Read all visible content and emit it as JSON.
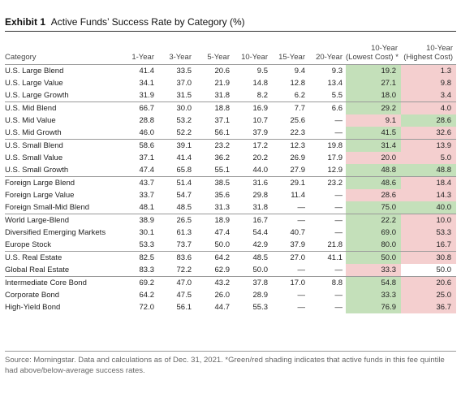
{
  "exhibit": {
    "label": "Exhibit 1",
    "title": "Active Funds’ Success Rate by Category (%)"
  },
  "columns": [
    "Category",
    "1-Year",
    "3-Year",
    "5-Year",
    "10-Year",
    "15-Year",
    "20-Year",
    "10-Year (Lowest Cost) *",
    "10-Year (Highest Cost)"
  ],
  "column_lines": [
    [
      "Category"
    ],
    [
      "1-Year"
    ],
    [
      "3-Year"
    ],
    [
      "5-Year"
    ],
    [
      "10-Year"
    ],
    [
      "15-Year"
    ],
    [
      "20-Year"
    ],
    [
      "10-Year",
      "(Lowest Cost) *"
    ],
    [
      "10-Year",
      "(Highest Cost)"
    ]
  ],
  "rows": [
    {
      "category": "U.S. Large Blend",
      "values": [
        "41.4",
        "33.5",
        "20.6",
        "9.5",
        "9.4",
        "9.3",
        "19.2",
        "1.3"
      ],
      "low_shade": "green",
      "high_shade": "red",
      "group_start": true
    },
    {
      "category": "U.S. Large Value",
      "values": [
        "34.1",
        "37.0",
        "21.9",
        "14.8",
        "12.8",
        "13.4",
        "27.1",
        "9.8"
      ],
      "low_shade": "green",
      "high_shade": "red",
      "group_start": false
    },
    {
      "category": "U.S. Large Growth",
      "values": [
        "31.9",
        "31.5",
        "31.8",
        "8.2",
        "6.2",
        "5.5",
        "18.0",
        "3.4"
      ],
      "low_shade": "green",
      "high_shade": "red",
      "group_start": false
    },
    {
      "category": "U.S. Mid Blend",
      "values": [
        "66.7",
        "30.0",
        "18.8",
        "16.9",
        "7.7",
        "6.6",
        "29.2",
        "4.0"
      ],
      "low_shade": "green",
      "high_shade": "red",
      "group_start": true
    },
    {
      "category": "U.S. Mid Value",
      "values": [
        "28.8",
        "53.2",
        "37.1",
        "10.7",
        "25.6",
        "—",
        "9.1",
        "28.6"
      ],
      "low_shade": "red",
      "high_shade": "green",
      "group_start": false
    },
    {
      "category": "U.S. Mid Growth",
      "values": [
        "46.0",
        "52.2",
        "56.1",
        "37.9",
        "22.3",
        "—",
        "41.5",
        "32.6"
      ],
      "low_shade": "green",
      "high_shade": "red",
      "group_start": false
    },
    {
      "category": "U.S. Small Blend",
      "values": [
        "58.6",
        "39.1",
        "23.2",
        "17.2",
        "12.3",
        "19.8",
        "31.4",
        "13.9"
      ],
      "low_shade": "green",
      "high_shade": "red",
      "group_start": true
    },
    {
      "category": "U.S. Small Value",
      "values": [
        "37.1",
        "41.4",
        "36.2",
        "20.2",
        "26.9",
        "17.9",
        "20.0",
        "5.0"
      ],
      "low_shade": "red",
      "high_shade": "red",
      "group_start": false
    },
    {
      "category": "U.S. Small Growth",
      "values": [
        "47.4",
        "65.8",
        "55.1",
        "44.0",
        "27.9",
        "12.9",
        "48.8",
        "48.8"
      ],
      "low_shade": "green",
      "high_shade": "green",
      "group_start": false
    },
    {
      "category": "Foreign Large Blend",
      "values": [
        "43.7",
        "51.4",
        "38.5",
        "31.6",
        "29.1",
        "23.2",
        "48.6",
        "18.4"
      ],
      "low_shade": "green",
      "high_shade": "red",
      "group_start": true
    },
    {
      "category": "Foreign Large Value",
      "values": [
        "33.7",
        "54.7",
        "35.6",
        "29.8",
        "11.4",
        "—",
        "28.6",
        "14.3"
      ],
      "low_shade": "red",
      "high_shade": "red",
      "group_start": false
    },
    {
      "category": "Foreign Small-Mid Blend",
      "values": [
        "48.1",
        "48.5",
        "31.3",
        "31.8",
        "—",
        "—",
        "75.0",
        "40.0"
      ],
      "low_shade": "green",
      "high_shade": "green",
      "group_start": false
    },
    {
      "category": "World Large-Blend",
      "values": [
        "38.9",
        "26.5",
        "18.9",
        "16.7",
        "—",
        "—",
        "22.2",
        "10.0"
      ],
      "low_shade": "green",
      "high_shade": "red",
      "group_start": true
    },
    {
      "category": "Diversified Emerging Markets",
      "values": [
        "30.1",
        "61.3",
        "47.4",
        "54.4",
        "40.7",
        "—",
        "69.0",
        "53.3"
      ],
      "low_shade": "green",
      "high_shade": "red",
      "group_start": false
    },
    {
      "category": "Europe Stock",
      "values": [
        "53.3",
        "73.7",
        "50.0",
        "42.9",
        "37.9",
        "21.8",
        "80.0",
        "16.7"
      ],
      "low_shade": "green",
      "high_shade": "red",
      "group_start": false
    },
    {
      "category": "U.S. Real Estate",
      "values": [
        "82.5",
        "83.6",
        "64.2",
        "48.5",
        "27.0",
        "41.1",
        "50.0",
        "30.8"
      ],
      "low_shade": "green",
      "high_shade": "red",
      "group_start": true
    },
    {
      "category": "Global Real Estate",
      "values": [
        "83.3",
        "72.2",
        "62.9",
        "50.0",
        "—",
        "—",
        "33.3",
        "50.0"
      ],
      "low_shade": "red",
      "high_shade": "none",
      "group_start": false
    },
    {
      "category": "Intermediate Core Bond",
      "values": [
        "69.2",
        "47.0",
        "43.2",
        "37.8",
        "17.0",
        "8.8",
        "54.8",
        "20.6"
      ],
      "low_shade": "green",
      "high_shade": "red",
      "group_start": true
    },
    {
      "category": "Corporate Bond",
      "values": [
        "64.2",
        "47.5",
        "26.0",
        "28.9",
        "—",
        "—",
        "33.3",
        "25.0"
      ],
      "low_shade": "green",
      "high_shade": "red",
      "group_start": false
    },
    {
      "category": "High-Yield Bond",
      "values": [
        "72.0",
        "56.1",
        "44.7",
        "55.3",
        "—",
        "—",
        "76.9",
        "36.7"
      ],
      "low_shade": "green",
      "high_shade": "red",
      "group_start": false
    }
  ],
  "colors": {
    "green": "#c4e0ba",
    "red": "#f4cfcf"
  },
  "source_note": "Source: Morningstar. Data and calculations as of Dec. 31, 2021. *Green/red shading indicates that active funds in this fee quintile had above/below-average success rates."
}
